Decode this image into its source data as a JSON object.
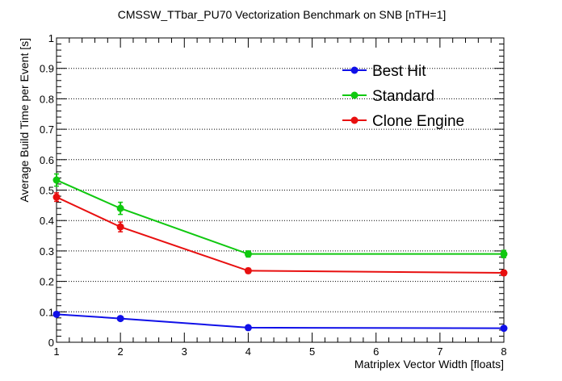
{
  "chart_data": {
    "type": "line",
    "title": "CMSSW_TTbar_PU70 Vectorization Benchmark on SNB [nTH=1]",
    "xlabel": "Matriplex Vector Width [floats]",
    "ylabel": "Average Build Time per Event [s]",
    "xlim": [
      1,
      8
    ],
    "ylim": [
      0,
      1
    ],
    "xticks": [
      1,
      2,
      3,
      4,
      5,
      6,
      7,
      8
    ],
    "yticks": [
      0,
      0.1,
      0.2,
      0.3,
      0.4,
      0.5,
      0.6,
      0.7,
      0.8,
      0.9,
      1
    ],
    "ytick_labels": [
      "0",
      "0.1",
      "0.2",
      "0.3",
      "0.4",
      "0.5",
      "0.6",
      "0.7",
      "0.8",
      "0.9",
      "1"
    ],
    "grid_y": true,
    "legend_position": "top-right",
    "x": [
      1,
      2,
      4,
      8
    ],
    "series": [
      {
        "name": "Best Hit",
        "color": "#1010e8",
        "values": [
          0.092,
          0.078,
          0.048,
          0.046
        ],
        "errors": [
          0.004,
          0.004,
          0.003,
          0.003
        ]
      },
      {
        "name": "Standard",
        "color": "#10c810",
        "values": [
          0.533,
          0.44,
          0.29,
          0.29
        ],
        "errors": [
          0.02,
          0.02,
          0.01,
          0.012
        ]
      },
      {
        "name": "Clone Engine",
        "color": "#e81010",
        "values": [
          0.477,
          0.379,
          0.235,
          0.228
        ],
        "errors": [
          0.014,
          0.016,
          0.008,
          0.008
        ]
      }
    ]
  }
}
